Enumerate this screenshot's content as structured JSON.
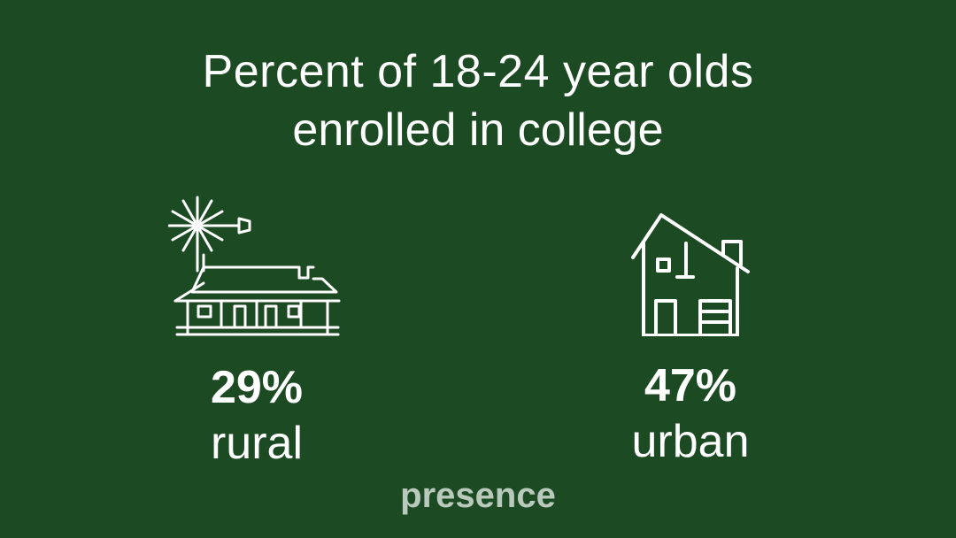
{
  "title": {
    "line1": "Percent of 18-24 year olds",
    "line2": "enrolled in college"
  },
  "stats": [
    {
      "icon": "farmhouse-windmill-icon",
      "percent": "29%",
      "label": "rural"
    },
    {
      "icon": "house-icon",
      "percent": "47%",
      "label": "urban"
    }
  ],
  "logo": {
    "text": "presence"
  },
  "colors": {
    "background": "#1c4a23",
    "text": "#ffffff",
    "logo": "#b9c9bb"
  }
}
